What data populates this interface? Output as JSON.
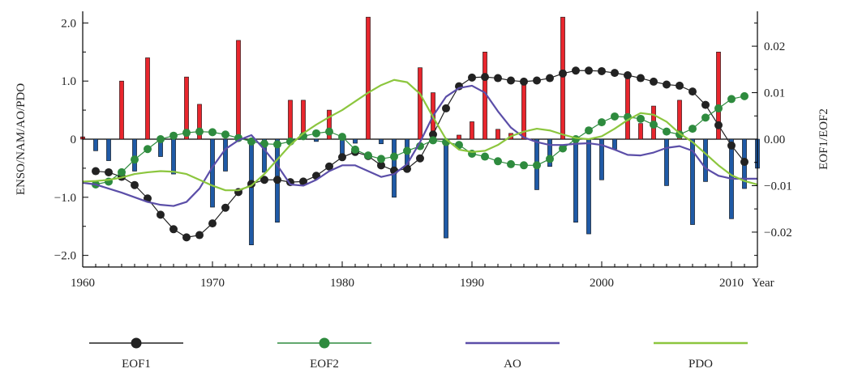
{
  "chart_data": {
    "type": "bar",
    "xlabel": "Year",
    "ylabel_left": "ENSO/NAM/AO/PDO",
    "ylabel_right": "EOF1/EOF2",
    "xlim": [
      1960,
      2012
    ],
    "ylim_left": [
      -2.2,
      2.2
    ],
    "ylim_right": [
      -0.0275,
      0.0275
    ],
    "x_ticks": [
      1960,
      1970,
      1980,
      1990,
      2000,
      2010
    ],
    "x_tick_labels": [
      "1960",
      "1970",
      "1980",
      "1990",
      "2000",
      "2010"
    ],
    "y_left_ticks": [
      -2.0,
      -1.0,
      0,
      1.0,
      2.0
    ],
    "y_left_tick_labels": [
      "−2.0",
      "−1.0",
      "0",
      "1.0",
      "2.0"
    ],
    "y_right_ticks": [
      -0.02,
      -0.01,
      0.0,
      0.01,
      0.02
    ],
    "y_right_tick_labels": [
      "−0.02",
      "−0.01",
      "0.00",
      "0.01",
      "0.02"
    ],
    "bar_colors": {
      "positive": "#e8262d",
      "negative": "#1f5aa6"
    },
    "bars": {
      "years": [
        1960,
        1961,
        1962,
        1963,
        1964,
        1965,
        1966,
        1967,
        1968,
        1969,
        1970,
        1971,
        1972,
        1973,
        1974,
        1975,
        1976,
        1977,
        1978,
        1979,
        1980,
        1981,
        1982,
        1983,
        1984,
        1985,
        1986,
        1987,
        1988,
        1989,
        1990,
        1991,
        1992,
        1993,
        1994,
        1995,
        1996,
        1997,
        1998,
        1999,
        2000,
        2001,
        2002,
        2003,
        2004,
        2005,
        2006,
        2007,
        2008,
        2009,
        2010,
        2011,
        2012
      ],
      "values": [
        0.04,
        -0.2,
        -0.37,
        1.0,
        -0.55,
        1.4,
        -0.3,
        -0.6,
        1.07,
        0.6,
        -1.17,
        -0.55,
        1.7,
        -1.82,
        -0.57,
        -1.43,
        0.67,
        0.67,
        -0.04,
        0.5,
        -0.3,
        -0.07,
        2.1,
        -0.08,
        -1.0,
        -0.55,
        1.23,
        0.8,
        -1.7,
        0.07,
        0.3,
        1.5,
        0.17,
        0.1,
        1.0,
        -0.87,
        -0.47,
        2.1,
        -1.43,
        -1.63,
        -0.7,
        -0.17,
        1.07,
        0.27,
        0.57,
        -0.8,
        0.67,
        -1.47,
        -0.73,
        1.5,
        -1.37,
        -0.85,
        -0.5
      ]
    },
    "series": [
      {
        "name": "EOF1",
        "axis": "right",
        "color": "#222222",
        "marker": "circle",
        "x": [
          1961,
          1962,
          1963,
          1964,
          1965,
          1966,
          1967,
          1968,
          1969,
          1970,
          1971,
          1972,
          1973,
          1974,
          1975,
          1976,
          1977,
          1978,
          1979,
          1980,
          1981,
          1982,
          1983,
          1984,
          1985,
          1986,
          1987,
          1988,
          1989,
          1990,
          1991,
          1992,
          1993,
          1994,
          1995,
          1996,
          1997,
          1998,
          1999,
          2000,
          2001,
          2002,
          2003,
          2004,
          2005,
          2006,
          2007,
          2008,
          2009,
          2010,
          2011
        ],
        "y": [
          -0.00688,
          -0.00713,
          -0.0081,
          -0.00987,
          -0.01275,
          -0.01625,
          -0.01937,
          -0.02113,
          -0.02063,
          -0.01812,
          -0.01475,
          -0.01138,
          -0.00963,
          -0.00875,
          -0.00875,
          -0.00925,
          -0.00912,
          -0.00788,
          -0.00588,
          -0.00388,
          -0.00275,
          -0.00363,
          -0.00563,
          -0.00675,
          -0.00638,
          -0.00413,
          0.001,
          0.00663,
          0.01138,
          0.01325,
          0.01338,
          0.01313,
          0.01262,
          0.01238,
          0.01262,
          0.01313,
          0.01413,
          0.01475,
          0.01475,
          0.01463,
          0.01425,
          0.01375,
          0.01313,
          0.01237,
          0.01175,
          0.0115,
          0.01025,
          0.00738,
          0.003,
          -0.00138,
          -0.00488
        ]
      },
      {
        "name": "EOF2",
        "axis": "right",
        "color": "#2e8b3e",
        "marker": "circle",
        "x": [
          1961,
          1962,
          1963,
          1964,
          1965,
          1966,
          1967,
          1968,
          1969,
          1970,
          1971,
          1972,
          1973,
          1974,
          1975,
          1976,
          1977,
          1978,
          1979,
          1980,
          1981,
          1982,
          1983,
          1984,
          1985,
          1986,
          1987,
          1988,
          1989,
          1990,
          1991,
          1992,
          1993,
          1994,
          1995,
          1996,
          1997,
          1998,
          1999,
          2000,
          2001,
          2002,
          2003,
          2004,
          2005,
          2006,
          2007,
          2008,
          2009,
          2010,
          2011
        ],
        "y": [
          -0.00975,
          -0.00913,
          -0.00712,
          -0.00438,
          -0.00213,
          0.0,
          0.00075,
          0.00138,
          0.00163,
          0.0015,
          0.001,
          0.00025,
          -0.0005,
          -0.001,
          -0.00112,
          -0.0005,
          0.00063,
          0.00125,
          0.00163,
          0.0005,
          -0.00225,
          -0.0035,
          -0.00425,
          -0.00375,
          -0.0025,
          -0.0015,
          -0.00025,
          -0.00063,
          -0.00125,
          -0.00313,
          -0.00375,
          -0.00475,
          -0.00538,
          -0.00562,
          -0.00562,
          -0.00425,
          -0.002,
          0.0,
          0.00188,
          0.00363,
          0.00488,
          0.00475,
          0.00438,
          0.00313,
          0.00163,
          0.001,
          0.00225,
          0.00463,
          0.00663,
          0.00863,
          0.00925
        ]
      },
      {
        "name": "AO",
        "axis": "left",
        "color": "#5b4ea8",
        "marker": "none",
        "x": [
          1960,
          1961,
          1962,
          1963,
          1964,
          1965,
          1966,
          1967,
          1968,
          1969,
          1970,
          1971,
          1972,
          1973,
          1974,
          1975,
          1976,
          1977,
          1978,
          1979,
          1980,
          1981,
          1982,
          1983,
          1984,
          1985,
          1986,
          1987,
          1988,
          1989,
          1990,
          1991,
          1992,
          1993,
          1994,
          1995,
          1996,
          1997,
          1998,
          1999,
          2000,
          2001,
          2002,
          2003,
          2004,
          2005,
          2006,
          2007,
          2008,
          2009,
          2010,
          2011,
          2012
        ],
        "y": [
          -0.75,
          -0.78,
          -0.85,
          -0.92,
          -1.0,
          -1.08,
          -1.13,
          -1.15,
          -1.08,
          -0.85,
          -0.48,
          -0.17,
          -0.02,
          0.07,
          -0.18,
          -0.45,
          -0.78,
          -0.8,
          -0.7,
          -0.55,
          -0.45,
          -0.45,
          -0.55,
          -0.65,
          -0.6,
          -0.43,
          -0.05,
          0.4,
          0.73,
          0.88,
          0.92,
          0.8,
          0.48,
          0.2,
          0.03,
          -0.05,
          -0.1,
          -0.1,
          -0.08,
          -0.07,
          -0.1,
          -0.18,
          -0.27,
          -0.28,
          -0.23,
          -0.15,
          -0.12,
          -0.2,
          -0.5,
          -0.63,
          -0.68,
          -0.68,
          -0.68
        ]
      },
      {
        "name": "PDO",
        "axis": "left",
        "color": "#8cc63e",
        "marker": "none",
        "x": [
          1960,
          1961,
          1962,
          1963,
          1964,
          1965,
          1966,
          1967,
          1968,
          1969,
          1970,
          1971,
          1972,
          1973,
          1974,
          1975,
          1976,
          1977,
          1978,
          1979,
          1980,
          1981,
          1982,
          1983,
          1984,
          1985,
          1986,
          1987,
          1988,
          1989,
          1990,
          1991,
          1992,
          1993,
          1994,
          1995,
          1996,
          1997,
          1998,
          1999,
          2000,
          2001,
          2002,
          2003,
          2004,
          2005,
          2006,
          2007,
          2008,
          2009,
          2010,
          2011,
          2012
        ],
        "y": [
          -0.73,
          -0.72,
          -0.7,
          -0.66,
          -0.6,
          -0.57,
          -0.55,
          -0.56,
          -0.6,
          -0.7,
          -0.8,
          -0.88,
          -0.88,
          -0.8,
          -0.6,
          -0.35,
          -0.1,
          0.1,
          0.25,
          0.38,
          0.5,
          0.65,
          0.8,
          0.93,
          1.02,
          0.98,
          0.78,
          0.38,
          0.0,
          -0.18,
          -0.22,
          -0.2,
          -0.1,
          0.05,
          0.13,
          0.18,
          0.15,
          0.08,
          0.02,
          0.0,
          0.05,
          0.18,
          0.33,
          0.45,
          0.42,
          0.3,
          0.1,
          -0.05,
          -0.25,
          -0.45,
          -0.62,
          -0.72,
          -0.78
        ]
      }
    ],
    "legend": {
      "placement": "bottom",
      "entries": [
        "EOF1",
        "EOF2",
        "AO",
        "PDO"
      ]
    }
  }
}
